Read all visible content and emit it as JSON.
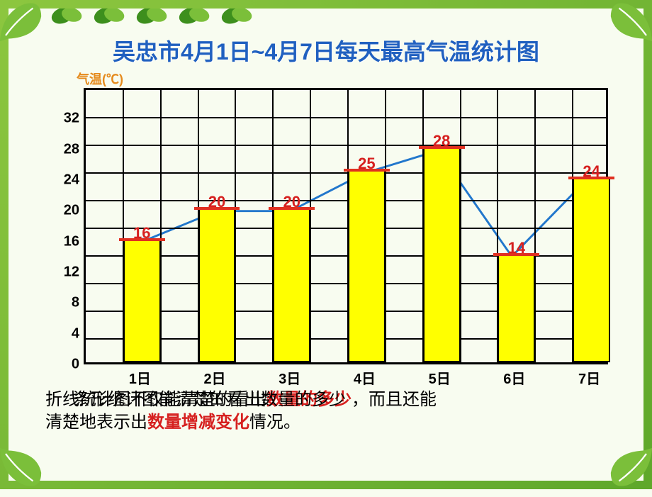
{
  "title": "吴忠市4月1日~4月7日每天最高气温统计图",
  "axis_label": "气温(℃)",
  "chart": {
    "type": "bar+line",
    "categories": [
      "1日",
      "2日",
      "3日",
      "4日",
      "5日",
      "6日",
      "7日"
    ],
    "values": [
      16,
      20,
      20,
      25,
      28,
      14,
      24
    ],
    "value_labels": [
      "16",
      "20",
      "20",
      "25",
      "28",
      "14",
      "24"
    ],
    "bar_color": "#ffff00",
    "bar_border": "#000000",
    "bar_cap_color": "#e03020",
    "value_label_color": "#d6201f",
    "line_color": "#2277cc",
    "line_width": 3,
    "marker_color": "#2277cc",
    "marker_size": 10,
    "grid_color": "#000000",
    "background_color": "#fefefe",
    "y_ticks": [
      0,
      4,
      8,
      12,
      16,
      20,
      24,
      28,
      32
    ],
    "ylim": [
      0,
      36
    ],
    "cols": 14,
    "rows": 10,
    "bar_width_cells": 1,
    "bar_positions_col": [
      1,
      3,
      5,
      7,
      9,
      11,
      13
    ]
  },
  "caption": {
    "line1_a": "折线统计图不仅能清楚的看出",
    "line1_red1": "数量的多少",
    "line1_b": "，而且还能",
    "line2_a": "清楚地表示出",
    "line2_red2": "数量增减变化",
    "line2_b": "情况。",
    "overlay": "条形统计图能清楚的看出数量的多少"
  },
  "frame": {
    "border_colors": [
      "#8cc63f",
      "#5fa82b"
    ],
    "leaf_color": "#7bbf3a",
    "leaf_vein": "#ffffff"
  }
}
